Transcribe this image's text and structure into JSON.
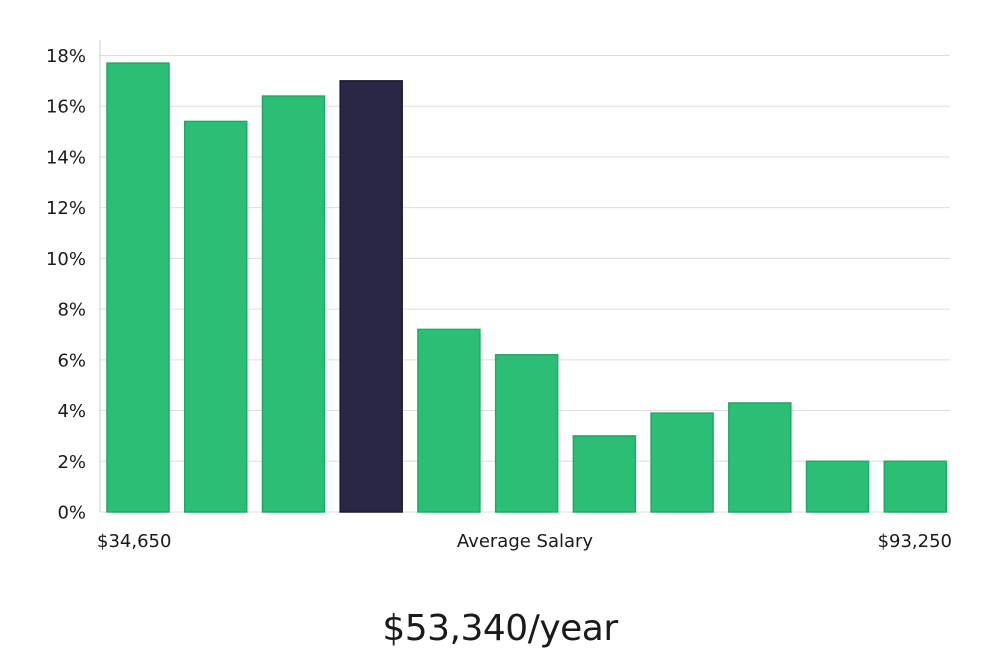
{
  "chart_data": {
    "type": "bar",
    "values": [
      17.7,
      15.4,
      16.4,
      17.0,
      7.2,
      6.2,
      3.0,
      3.9,
      4.3,
      2.0,
      2.0
    ],
    "highlight_index": 3,
    "ylim": [
      0,
      18
    ],
    "yticks": [
      0,
      2,
      4,
      6,
      8,
      10,
      12,
      14,
      16,
      18
    ],
    "ytick_suffix": "%",
    "grid": true,
    "x_start_label": "$34,650",
    "xlabel": "Average Salary",
    "x_end_label": "$93,250",
    "colors": {
      "bar": "#2bbf76",
      "highlight": "#2a2746",
      "grid": "#dddddd",
      "axis": "#cccccc"
    }
  },
  "salary_label": "$53,340/year"
}
